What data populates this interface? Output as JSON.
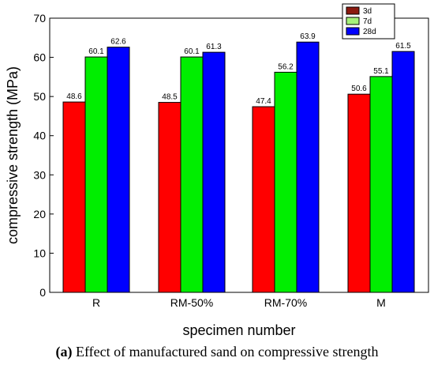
{
  "caption": {
    "tag": "(a)",
    "text": "Effect of manufactured sand on compressive strength"
  },
  "colors": {
    "3d": "#ff0000",
    "7d": "#00ee00",
    "28d": "#0000ff",
    "legend_3d_swatch": "#8b1a10",
    "legend_7d_swatch": "#a6f27a"
  },
  "chart_data": {
    "type": "bar",
    "categories": [
      "R",
      "RM-50%",
      "RM-70%",
      "M"
    ],
    "series": [
      {
        "name": "3d",
        "values": [
          48.6,
          48.5,
          47.4,
          50.6
        ]
      },
      {
        "name": "7d",
        "values": [
          60.1,
          60.1,
          56.2,
          55.1
        ]
      },
      {
        "name": "28d",
        "values": [
          62.6,
          61.3,
          63.9,
          61.5
        ]
      }
    ],
    "data_labels": [
      [
        "48.6",
        "60.1",
        "62.6"
      ],
      [
        "48.5",
        "60.1",
        "61.3"
      ],
      [
        "47.4",
        "56.2",
        "63.9"
      ],
      [
        "50.6",
        "55.1",
        "61.5"
      ]
    ],
    "xlabel": "specimen number",
    "ylabel": "compressive strength (MPa)",
    "ylim": [
      0,
      70
    ],
    "yticks": [
      "0",
      "10",
      "20",
      "30",
      "40",
      "50",
      "60",
      "70"
    ],
    "legend": [
      "3d",
      "7d",
      "28d"
    ],
    "legend_position": "top-right",
    "grid": false
  }
}
